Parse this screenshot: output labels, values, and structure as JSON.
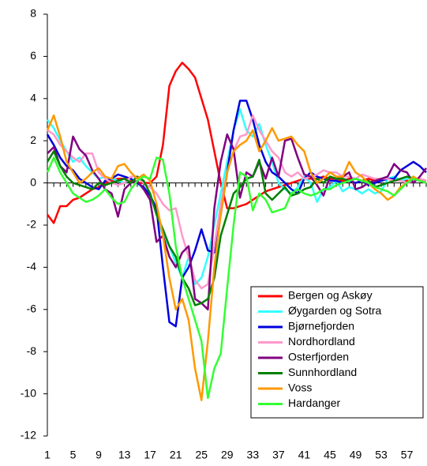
{
  "chart_data": {
    "type": "line",
    "categories": [
      1,
      null,
      null,
      null,
      5,
      null,
      null,
      null,
      9,
      null,
      null,
      null,
      13,
      null,
      null,
      null,
      17,
      null,
      null,
      null,
      21,
      null,
      null,
      null,
      25,
      null,
      null,
      null,
      29,
      null,
      null,
      null,
      33,
      null,
      null,
      null,
      37,
      null,
      null,
      null,
      41,
      null,
      null,
      null,
      45,
      null,
      null,
      null,
      49,
      null,
      null,
      null,
      53,
      null,
      null,
      null,
      57,
      null,
      null,
      null
    ],
    "ylim": [
      -12,
      8
    ],
    "yticks": [
      -12,
      -10,
      -8,
      -6,
      -4,
      -2,
      0,
      2,
      4,
      6,
      8
    ],
    "grid": false,
    "legend": "lower right",
    "series": [
      {
        "name": "Bergen og Askøy",
        "color": "#ff0000",
        "values": [
          -1.5,
          -1.9,
          -1.1,
          -1.1,
          -0.8,
          -0.7,
          -0.5,
          -0.3,
          -0.2,
          0,
          0.1,
          0.2,
          0.2,
          0.1,
          0,
          0,
          0,
          0.3,
          1.8,
          4.6,
          5.3,
          5.7,
          5.4,
          5.0,
          4.0,
          3.0,
          1.5,
          0,
          -1.2,
          -1.2,
          -1.1,
          -1.0,
          -0.8,
          -0.6,
          -0.4,
          -0.3,
          -0.2,
          -0.1,
          0,
          0.1,
          0.2,
          0.2,
          0.2,
          0.3,
          0.2,
          0.2,
          0.1,
          0.2,
          0.2,
          0.1,
          0.2,
          0.1,
          0.1,
          0.2,
          0.1,
          0.2,
          0.1,
          0.1,
          0.2,
          0.1
        ]
      },
      {
        "name": "Øygarden og Sotra",
        "color": "#33ffff",
        "values": [
          3.0,
          2.6,
          2.0,
          1.5,
          1.0,
          1.2,
          0.8,
          0.5,
          0.2,
          0.3,
          0.2,
          0.1,
          0,
          0.2,
          0,
          -0.3,
          -0.5,
          -1.5,
          -2.5,
          -3.0,
          -3.8,
          -4.5,
          -3.5,
          -4.8,
          -4.5,
          -3.5,
          -2.0,
          -0.5,
          1.0,
          2.5,
          3.5,
          2.5,
          2.2,
          2.8,
          1.8,
          1.0,
          0,
          -0.3,
          -0.5,
          -0.2,
          0.3,
          0,
          -0.9,
          -0.3,
          -0.2,
          0.1,
          -0.4,
          -0.2,
          -0.3,
          -0.5,
          -0.3,
          -0.5,
          -0.4,
          0.2,
          0.3,
          0.1,
          0.2,
          0.3,
          0.1,
          0
        ]
      },
      {
        "name": "Bjørnefjorden",
        "color": "#0000dd",
        "values": [
          2.3,
          1.8,
          1.2,
          0.8,
          0.6,
          0.2,
          0,
          -0.2,
          -0.3,
          0.1,
          0.2,
          0.4,
          0.3,
          0.2,
          0,
          -0.2,
          -0.6,
          -1.2,
          -4.0,
          -6.6,
          -6.8,
          -4.5,
          -4.0,
          -3.2,
          -2.2,
          -3.2,
          -3.3,
          -1.5,
          0.5,
          2.5,
          3.9,
          3.9,
          3.0,
          1.8,
          1.0,
          0.5,
          0.3,
          0,
          -0.3,
          -0.5,
          0.2,
          0.5,
          0.3,
          0.2,
          0.1,
          0.1,
          0,
          0.1,
          0,
          0.1,
          -0.1,
          0,
          0.1,
          0.2,
          0.2,
          0.6,
          0.8,
          1.0,
          0.8,
          0.5
        ]
      },
      {
        "name": "Nordhordland",
        "color": "#ff99cc",
        "values": [
          2.5,
          2.3,
          1.8,
          1.5,
          1.2,
          1.0,
          1.4,
          1.4,
          0.5,
          0.2,
          0,
          -0.1,
          0,
          0.3,
          0.3,
          0,
          -0.2,
          -0.5,
          -1.0,
          -1.3,
          -1.2,
          -2.5,
          -3.5,
          -4.6,
          -5.0,
          -4.8,
          -3.0,
          -1.0,
          0.5,
          1.5,
          2.2,
          2.3,
          3.2,
          2.5,
          2.0,
          1.5,
          1.2,
          0.5,
          0.3,
          0.5,
          0.2,
          0.3,
          0.4,
          0.6,
          0.5,
          0.5,
          0.3,
          0.3,
          0.2,
          0.4,
          0.3,
          0.2,
          0.2,
          0.2,
          0.1,
          0.1,
          0,
          0.1,
          0.2,
          0.1
        ]
      },
      {
        "name": "Osterfjorden",
        "color": "#800080",
        "values": [
          1.4,
          1.7,
          0.8,
          0.5,
          2.2,
          1.6,
          1.3,
          0.6,
          0.2,
          -0.3,
          -0.5,
          -1.6,
          -0.3,
          0,
          0.1,
          -0.3,
          -0.8,
          -2.8,
          -2.5,
          -3.5,
          -4.0,
          -3.3,
          -3.0,
          -5.5,
          -5.7,
          -6.0,
          -1.2,
          1.0,
          2.3,
          1.6,
          -0.7,
          0.5,
          0.3,
          1.0,
          0.2,
          1.2,
          0.3,
          2.0,
          2.1,
          1.2,
          0.4,
          0.3,
          -0.1,
          -0.6,
          0.3,
          0.2,
          0.3,
          0.5,
          -0.3,
          -0.2,
          0,
          0.1,
          0.2,
          0.3,
          0.9,
          0.6,
          0.5,
          0,
          0.3,
          0.7
        ]
      },
      {
        "name": "Sunnhordland",
        "color": "#008000",
        "values": [
          1.0,
          1.5,
          0.8,
          0.3,
          0,
          -0.1,
          -0.2,
          -0.3,
          0,
          -0.1,
          0,
          0.1,
          0.2,
          0,
          0.3,
          0.1,
          -0.5,
          -1.5,
          -2.2,
          -3.0,
          -3.5,
          -4.5,
          -5.0,
          -5.8,
          -5.7,
          -5.5,
          -4.5,
          -2.5,
          -1.5,
          -0.5,
          -0.2,
          0.2,
          0.3,
          1.1,
          -0.5,
          -0.8,
          -0.5,
          -0.2,
          -0.6,
          -0.5,
          -0.3,
          -0.2,
          0.2,
          0,
          0.3,
          0.2,
          0.2,
          0.1,
          0.2,
          0.1,
          0.1,
          -0.2,
          -0.1,
          0,
          0.1,
          0.2,
          0.3,
          0.2,
          0.1,
          0
        ]
      },
      {
        "name": "Voss",
        "color": "#ff9900",
        "values": [
          2.5,
          3.2,
          2.2,
          1.0,
          0.5,
          0,
          0.2,
          0.5,
          0.7,
          0.3,
          0.2,
          0.8,
          0.9,
          0.5,
          0.2,
          0.4,
          0.1,
          -1.0,
          -2.5,
          -4.5,
          -6.0,
          -5.5,
          -6.5,
          -8.8,
          -10.3,
          -7.5,
          -4.0,
          -1.5,
          0.5,
          1.5,
          1.8,
          2.0,
          2.5,
          1.5,
          2.0,
          2.6,
          2.0,
          2.1,
          2.2,
          1.8,
          1.5,
          0.5,
          0,
          0.2,
          0.5,
          0.3,
          0.3,
          1.0,
          0.5,
          0.3,
          0,
          -0.3,
          -0.5,
          -0.8,
          -0.6,
          -0.2,
          0,
          0.3,
          0.1,
          0
        ]
      },
      {
        "name": "Hardanger",
        "color": "#33ff33",
        "values": [
          0.5,
          1.2,
          0.5,
          0,
          -0.5,
          -0.7,
          -0.9,
          -0.8,
          -0.6,
          -0.3,
          -0.7,
          -1.0,
          -0.9,
          -0.3,
          0.1,
          0.3,
          0.2,
          1.2,
          1.1,
          -0.5,
          -3.0,
          -4.5,
          -5.5,
          -6.5,
          -7.5,
          -10.2,
          -8.8,
          -8.1,
          -5.0,
          -2.0,
          0.5,
          0.3,
          -1.3,
          -0.5,
          -0.8,
          -1.4,
          -1.3,
          -1.2,
          -0.5,
          -0.3,
          -0.5,
          -0.6,
          -0.5,
          -0.3,
          -0.3,
          -0.1,
          0,
          0.1,
          0.2,
          0.1,
          0,
          -0.2,
          -0.3,
          -0.4,
          -0.6,
          -0.3,
          0,
          0.2,
          0.1,
          0
        ]
      }
    ]
  }
}
